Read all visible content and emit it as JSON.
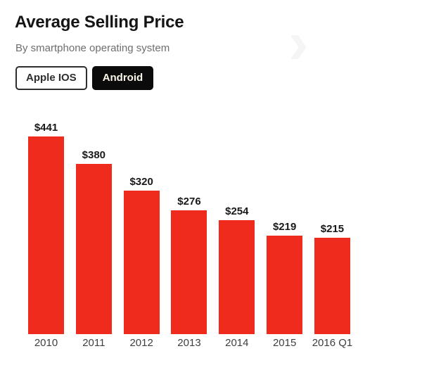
{
  "header": {
    "title": "Average Selling Price",
    "subtitle": "By smartphone operating system"
  },
  "toggle": {
    "options": [
      {
        "label": "Apple IOS",
        "active": false
      },
      {
        "label": "Android",
        "active": true
      }
    ]
  },
  "colors": {
    "bar": "#ee2b1d",
    "title_text": "#141414",
    "subtitle_text": "#6e6e6e",
    "active_button_bg": "#0b0b0b",
    "active_button_text": "#faf6e8",
    "inactive_button_border": "#2e2e2e",
    "axis_label_text": "#3f3f3f"
  },
  "chart_data": {
    "type": "bar",
    "title": "Average Selling Price",
    "subtitle": "By smartphone operating system",
    "series_name": "Android",
    "categories": [
      "2010",
      "2011",
      "2012",
      "2013",
      "2014",
      "2015",
      "2016 Q1"
    ],
    "values": [
      441,
      380,
      320,
      276,
      254,
      219,
      215
    ],
    "value_labels": [
      "$441",
      "$380",
      "$320",
      "$276",
      "$254",
      "$219",
      "$215"
    ],
    "unit": "$",
    "xlabel": "",
    "ylabel": "",
    "ylim": [
      0,
      460
    ],
    "grid": false,
    "legend_position": "none",
    "bar_color": "#ee2b1d"
  }
}
